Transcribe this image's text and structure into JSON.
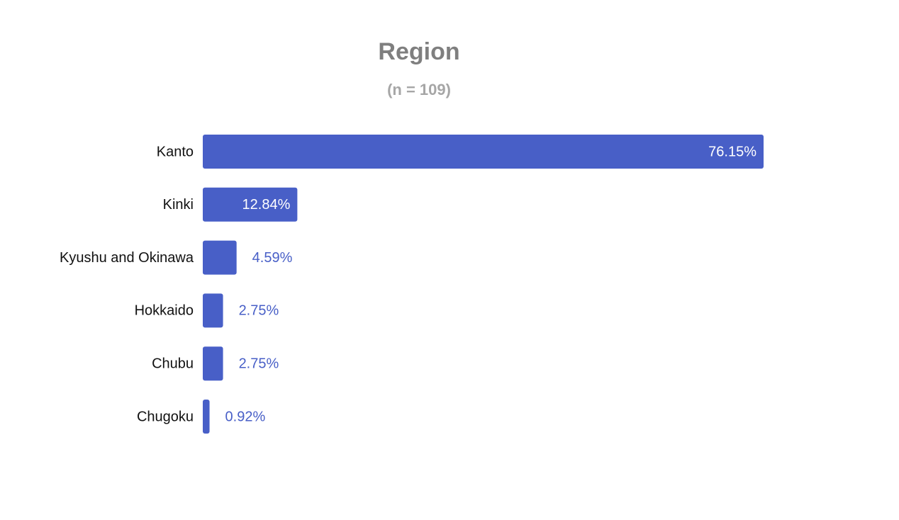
{
  "chart_data": {
    "type": "bar",
    "orientation": "horizontal",
    "title": "Region",
    "subtitle": "(n = 109)",
    "categories": [
      "Kanto",
      "Kinki",
      "Kyushu and Okinawa",
      "Hokkaido",
      "Chubu",
      "Chugoku"
    ],
    "values": [
      76.15,
      12.84,
      4.59,
      2.75,
      2.75,
      0.92
    ],
    "value_labels": [
      "76.15%",
      "12.84%",
      "4.59%",
      "2.75%",
      "2.75%",
      "0.92%"
    ],
    "color": "#485fc7"
  }
}
